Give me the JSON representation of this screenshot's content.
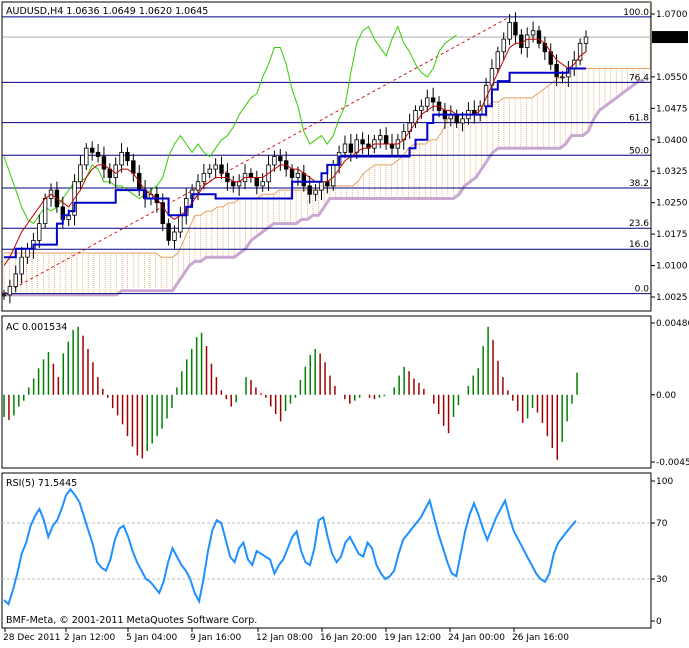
{
  "chart_data": [
    {
      "type": "candlestick",
      "symbol": "AUDUSD,H4",
      "ohlc_label": "1.0636 1.0649 1.0620 1.0645",
      "title": "AUDUSD,H4  1.0636 1.0649 1.0620 1.0645",
      "ylim": [
        1.0,
        1.07
      ],
      "y_ticks": [
        "1.0700",
        "1.0645",
        "1.0550",
        "1.0475",
        "1.0400",
        "1.0325",
        "1.0250",
        "1.0175",
        "1.0100",
        "1.0025"
      ],
      "y_tick_values": [
        1.07,
        1.0645,
        1.055,
        1.0475,
        1.04,
        1.0325,
        1.025,
        1.0175,
        1.01,
        1.0025
      ],
      "current_price": 1.0645,
      "current_price_label": "1.0645",
      "fibonacci": [
        {
          "level": "100.0",
          "price": 1.0693
        },
        {
          "level": "76.4",
          "price": 1.0537
        },
        {
          "level": "61.8",
          "price": 1.0441
        },
        {
          "level": "50.0",
          "price": 1.0363
        },
        {
          "level": "38.2",
          "price": 1.0285
        },
        {
          "level": "23.6",
          "price": 1.0189
        },
        {
          "level": "16.0",
          "price": 1.0139
        },
        {
          "level": "0.0",
          "price": 1.0033
        }
      ],
      "close": [
        1.003,
        1.005,
        1.008,
        1.012,
        1.014,
        1.016,
        1.02,
        1.026,
        1.028,
        1.024,
        1.021,
        1.022,
        1.03,
        1.034,
        1.038,
        1.037,
        1.036,
        1.033,
        1.031,
        1.034,
        1.037,
        1.035,
        1.032,
        1.028,
        1.026,
        1.027,
        1.025,
        1.02,
        1.016,
        1.018,
        1.022,
        1.026,
        1.028,
        1.03,
        1.032,
        1.033,
        1.034,
        1.032,
        1.03,
        1.029,
        1.03,
        1.032,
        1.031,
        1.029,
        1.03,
        1.034,
        1.036,
        1.035,
        1.033,
        1.031,
        1.032,
        1.029,
        1.027,
        1.028,
        1.03,
        1.029,
        1.034,
        1.037,
        1.039,
        1.037,
        1.04,
        1.039,
        1.038,
        1.04,
        1.041,
        1.039,
        1.038,
        1.04,
        1.042,
        1.044,
        1.047,
        1.048,
        1.05,
        1.049,
        1.047,
        1.045,
        1.046,
        1.044,
        1.045,
        1.047,
        1.046,
        1.048,
        1.053,
        1.057,
        1.061,
        1.064,
        1.068,
        1.065,
        1.062,
        1.065,
        1.066,
        1.063,
        1.061,
        1.058,
        1.055,
        1.055,
        1.057,
        1.059,
        1.063,
        1.0645
      ],
      "conversion_line": [
        1.01,
        1.012,
        1.015,
        1.018,
        1.02,
        1.022,
        1.024,
        1.026,
        1.027,
        1.026,
        1.025,
        1.024,
        1.026,
        1.028,
        1.031,
        1.033,
        1.034,
        1.034,
        1.033,
        1.032,
        1.033,
        1.033,
        1.032,
        1.03,
        1.028,
        1.027,
        1.026,
        1.024,
        1.022,
        1.021,
        1.022,
        1.023,
        1.025,
        1.027,
        1.029,
        1.03,
        1.031,
        1.031,
        1.031,
        1.03,
        1.03,
        1.031,
        1.031,
        1.031,
        1.031,
        1.032,
        1.033,
        1.034,
        1.034,
        1.033,
        1.033,
        1.032,
        1.031,
        1.03,
        1.03,
        1.03,
        1.031,
        1.033,
        1.035,
        1.036,
        1.037,
        1.038,
        1.038,
        1.039,
        1.039,
        1.039,
        1.039,
        1.039,
        1.04,
        1.042,
        1.044,
        1.046,
        1.047,
        1.048,
        1.048,
        1.047,
        1.047,
        1.046,
        1.046,
        1.046,
        1.046,
        1.047,
        1.05,
        1.053,
        1.056,
        1.059,
        1.062,
        1.063,
        1.063,
        1.064,
        1.064,
        1.064,
        1.063,
        1.061,
        1.059,
        1.058,
        1.057,
        1.058,
        1.06,
        1.061
      ],
      "base_line": [
        1.012,
        1.012,
        1.014,
        1.014,
        1.014,
        1.015,
        1.015,
        1.015,
        1.015,
        1.02,
        1.022,
        1.023,
        1.025,
        1.025,
        1.025,
        1.025,
        1.025,
        1.025,
        1.025,
        1.028,
        1.028,
        1.028,
        1.028,
        1.028,
        1.026,
        1.026,
        1.026,
        1.026,
        1.022,
        1.022,
        1.022,
        1.024,
        1.027,
        1.027,
        1.027,
        1.027,
        1.026,
        1.026,
        1.026,
        1.026,
        1.026,
        1.026,
        1.026,
        1.026,
        1.026,
        1.026,
        1.026,
        1.026,
        1.026,
        1.03,
        1.03,
        1.03,
        1.03,
        1.03,
        1.032,
        1.034,
        1.034,
        1.036,
        1.036,
        1.036,
        1.036,
        1.036,
        1.036,
        1.036,
        1.036,
        1.036,
        1.036,
        1.036,
        1.036,
        1.038,
        1.04,
        1.04,
        1.044,
        1.046,
        1.046,
        1.046,
        1.046,
        1.046,
        1.046,
        1.046,
        1.046,
        1.046,
        1.048,
        1.052,
        1.054,
        1.054,
        1.056,
        1.056,
        1.056,
        1.056,
        1.056,
        1.056,
        1.056,
        1.056,
        1.056,
        1.056,
        1.057,
        1.057,
        1.057,
        1.057
      ],
      "lagging_span": [
        1.036,
        1.032,
        1.028,
        1.024,
        1.021,
        1.02,
        1.022,
        1.024,
        1.023,
        1.024,
        1.026,
        1.028,
        1.03,
        1.03,
        1.031,
        1.034,
        1.033,
        1.03,
        1.03,
        1.029,
        1.029,
        1.028,
        1.027,
        1.026,
        1.027,
        1.028,
        1.029,
        1.031,
        1.036,
        1.039,
        1.041,
        1.039,
        1.037,
        1.039,
        1.037,
        1.036,
        1.038,
        1.04,
        1.041,
        1.043,
        1.046,
        1.048,
        1.05,
        1.051,
        1.055,
        1.058,
        1.062,
        1.062,
        1.058,
        1.052,
        1.048,
        1.042,
        1.039,
        1.04,
        1.041,
        1.039,
        1.041,
        1.045,
        1.048,
        1.056,
        1.063,
        1.066,
        1.067,
        1.064,
        1.062,
        1.06,
        1.064,
        1.067,
        1.063,
        1.061,
        1.058,
        1.056,
        1.055,
        1.057,
        1.061,
        1.063,
        1.064,
        1.065
      ],
      "cloud_upper": [
        1.013,
        1.013,
        1.013,
        1.013,
        1.013,
        1.013,
        1.013,
        1.013,
        1.013,
        1.013,
        1.013,
        1.013,
        1.013,
        1.013,
        1.013,
        1.013,
        1.013,
        1.013,
        1.013,
        1.013,
        1.013,
        1.013,
        1.013,
        1.013,
        1.013,
        1.013,
        1.013,
        1.013,
        1.012,
        1.012,
        1.012,
        1.013,
        1.016,
        1.019,
        1.022,
        1.022,
        1.023,
        1.023,
        1.024,
        1.024,
        1.025,
        1.025,
        1.026,
        1.026,
        1.026,
        1.026,
        1.027,
        1.027,
        1.027,
        1.028,
        1.028,
        1.028,
        1.028,
        1.028,
        1.028,
        1.028,
        1.028,
        1.029,
        1.029,
        1.029,
        1.029,
        1.029,
        1.029,
        1.03,
        1.032,
        1.033,
        1.034,
        1.034,
        1.034,
        1.034,
        1.035,
        1.036,
        1.038,
        1.039,
        1.039,
        1.039,
        1.04,
        1.04,
        1.042,
        1.045,
        1.046,
        1.046,
        1.046,
        1.047,
        1.047,
        1.048,
        1.048,
        1.049,
        1.049,
        1.05,
        1.05,
        1.05,
        1.05,
        1.05,
        1.05,
        1.051,
        1.052,
        1.053,
        1.054,
        1.055,
        1.056,
        1.057,
        1.057,
        1.057,
        1.057,
        1.057,
        1.057,
        1.057,
        1.057,
        1.057,
        1.057,
        1.057,
        1.057,
        1.057,
        1.057,
        1.057
      ],
      "cloud_lower": [
        1.003,
        1.003,
        1.003,
        1.003,
        1.003,
        1.003,
        1.003,
        1.003,
        1.003,
        1.003,
        1.003,
        1.003,
        1.003,
        1.003,
        1.003,
        1.003,
        1.003,
        1.003,
        1.003,
        1.003,
        1.003,
        1.004,
        1.004,
        1.004,
        1.004,
        1.004,
        1.004,
        1.004,
        1.004,
        1.004,
        1.004,
        1.006,
        1.008,
        1.01,
        1.011,
        1.011,
        1.012,
        1.012,
        1.012,
        1.012,
        1.012,
        1.012,
        1.013,
        1.014,
        1.016,
        1.017,
        1.018,
        1.019,
        1.02,
        1.02,
        1.02,
        1.02,
        1.02,
        1.021,
        1.021,
        1.022,
        1.022,
        1.024,
        1.026,
        1.026,
        1.026,
        1.026,
        1.026,
        1.026,
        1.026,
        1.026,
        1.026,
        1.026,
        1.026,
        1.026,
        1.026,
        1.026,
        1.026,
        1.026,
        1.026,
        1.026,
        1.026,
        1.026,
        1.026,
        1.026,
        1.026,
        1.027,
        1.029,
        1.03,
        1.031,
        1.033,
        1.035,
        1.037,
        1.038,
        1.038,
        1.038,
        1.038,
        1.038,
        1.038,
        1.038,
        1.038,
        1.038,
        1.038,
        1.038,
        1.038,
        1.039,
        1.041,
        1.041,
        1.041,
        1.042,
        1.045,
        1.047,
        1.048,
        1.049,
        1.05,
        1.051,
        1.052,
        1.053,
        1.054,
        1.054
      ]
    },
    {
      "type": "bar",
      "label": "AC 0.001534",
      "ylim": [
        -0.00455,
        0.00486
      ],
      "y_ticks": [
        "0.00486",
        "0.00",
        "-0.00455"
      ],
      "y_tick_values": [
        0.00486,
        0.0,
        -0.00455
      ],
      "values": [
        -0.0015,
        -0.0017,
        -0.0014,
        -0.0008,
        -0.0004,
        0.0005,
        0.0011,
        0.0018,
        0.0024,
        0.0029,
        0.0021,
        0.0012,
        0.0028,
        0.0036,
        0.0044,
        0.0046,
        0.004,
        0.0031,
        0.0022,
        0.0012,
        0.0004,
        -0.0002,
        -0.0009,
        -0.0014,
        -0.002,
        -0.0028,
        -0.0035,
        -0.0041,
        -0.0043,
        -0.0038,
        -0.0033,
        -0.0028,
        -0.0023,
        -0.0016,
        -0.0009,
        0.0005,
        0.0016,
        0.0024,
        0.0031,
        0.0039,
        0.0042,
        0.0033,
        0.0021,
        0.0012,
        0.0003,
        -0.0003,
        -0.0008,
        -0.0005,
        0.0,
        0.0012,
        0.001,
        0.0005,
        0.0001,
        -0.0002,
        -0.0008,
        -0.0013,
        -0.0018,
        -0.0011,
        -0.0006,
        -0.0002,
        0.001,
        0.0019,
        0.0027,
        0.0031,
        0.0028,
        0.0022,
        0.0013,
        0.0006,
        0.0,
        -0.0003,
        -0.0006,
        -0.0004,
        -0.0002,
        0.0,
        -0.0002,
        -0.0003,
        -0.0002,
        -0.0001,
        0.0,
        0.0005,
        0.0013,
        0.0019,
        0.0016,
        0.0011,
        0.0008,
        0.0004,
        0.0,
        -0.0006,
        -0.0013,
        -0.0021,
        -0.0026,
        -0.0015,
        -0.0007,
        0.0,
        0.0006,
        0.0013,
        0.0018,
        0.0033,
        0.0046,
        0.0037,
        0.0023,
        0.0012,
        0.0003,
        -0.0004,
        -0.0011,
        -0.0019,
        -0.0016,
        -0.0009,
        -0.0012,
        -0.0019,
        -0.0028,
        -0.0036,
        -0.0044,
        -0.0032,
        -0.0018,
        -0.0006,
        0.0015
      ]
    },
    {
      "type": "line",
      "label": "RSI(5) 71.5445",
      "ylim": [
        0,
        100
      ],
      "y_ticks": [
        "100",
        "70",
        "30",
        "0"
      ],
      "y_tick_values": [
        100,
        70,
        30,
        0
      ],
      "levels": [
        70,
        30
      ],
      "values": [
        15,
        12,
        22,
        34,
        48,
        56,
        68,
        75,
        80,
        72,
        60,
        68,
        72,
        80,
        90,
        94,
        90,
        85,
        75,
        65,
        55,
        42,
        38,
        36,
        44,
        58,
        66,
        68,
        60,
        50,
        42,
        36,
        30,
        28,
        24,
        20,
        28,
        42,
        52,
        46,
        40,
        36,
        30,
        20,
        14,
        30,
        50,
        65,
        72,
        70,
        58,
        46,
        42,
        52,
        56,
        44,
        40,
        50,
        48,
        46,
        44,
        34,
        40,
        44,
        52,
        60,
        64,
        50,
        42,
        40,
        52,
        72,
        74,
        60,
        48,
        42,
        46,
        56,
        60,
        54,
        48,
        46,
        56,
        52,
        40,
        34,
        30,
        32,
        36,
        48,
        58,
        62,
        66,
        70,
        74,
        80,
        86,
        74,
        62,
        52,
        42,
        34,
        32,
        48,
        64,
        76,
        84,
        76,
        66,
        58,
        66,
        74,
        80,
        86,
        74,
        64,
        58,
        52,
        46,
        40,
        34,
        30,
        28,
        34,
        48,
        56,
        60,
        64,
        68,
        71.5445
      ]
    }
  ],
  "time_axis": [
    "28 Dec 2011",
    "2 Jan 12:00",
    "5 Jan 04:00",
    "9 Jan 16:00",
    "12 Jan 08:00",
    "16 Jan 20:00",
    "19 Jan 12:00",
    "24 Jan 00:00",
    "26 Jan 16:00"
  ],
  "copyright": "BMF-Meta, © 2001-2011 MetaQuotes Software Corp.",
  "colors": {
    "candle": "#000000",
    "conversion_line": "#c00000",
    "base_line": "#0000c8",
    "lagging_span": "#33cc00",
    "cloud_upper": "#e8a060",
    "cloud_lower": "#c8a8d0",
    "fib_line": "#000080",
    "fib_label": "#0000c0",
    "trendline": "#d00000",
    "ac_up": "#008000",
    "ac_down": "#a00000",
    "rsi": "#1e90ff",
    "grid": "#c0c0c0"
  }
}
